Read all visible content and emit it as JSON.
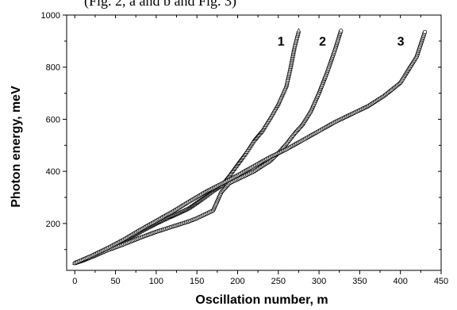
{
  "page": {
    "top_caption": "(Fig. 2, a and b and Fig. 3)"
  },
  "chart_data": {
    "type": "scatter",
    "title": "",
    "xlabel": "Oscillation number, m",
    "ylabel": "Photon energy, meV",
    "xlim": [
      -10,
      450
    ],
    "ylim": [
      20,
      1000
    ],
    "xticks": [
      0,
      50,
      100,
      150,
      200,
      250,
      300,
      350,
      400,
      450
    ],
    "yticks": [
      200,
      400,
      600,
      800,
      1000
    ],
    "grid": false,
    "series": [
      {
        "name": "1",
        "marker": "triangle",
        "label_position": [
          249,
          883
        ],
        "points": [
          [
            0,
            48
          ],
          [
            10,
            58
          ],
          [
            20,
            72
          ],
          [
            30,
            86
          ],
          [
            40,
            102
          ],
          [
            50,
            118
          ],
          [
            60,
            133
          ],
          [
            70,
            150
          ],
          [
            80,
            167
          ],
          [
            90,
            184
          ],
          [
            100,
            200
          ],
          [
            110,
            215
          ],
          [
            120,
            229
          ],
          [
            130,
            243
          ],
          [
            140,
            258
          ],
          [
            150,
            280
          ],
          [
            160,
            302
          ],
          [
            170,
            325
          ],
          [
            180,
            345
          ],
          [
            190,
            385
          ],
          [
            200,
            428
          ],
          [
            210,
            470
          ],
          [
            220,
            518
          ],
          [
            230,
            555
          ],
          [
            240,
            605
          ],
          [
            250,
            660
          ],
          [
            260,
            730
          ],
          [
            265,
            800
          ],
          [
            270,
            880
          ],
          [
            275,
            940
          ]
        ]
      },
      {
        "name": "2",
        "marker": "circle",
        "label_position": [
          300,
          883
        ],
        "points": [
          [
            0,
            48
          ],
          [
            20,
            70
          ],
          [
            40,
            97
          ],
          [
            60,
            120
          ],
          [
            80,
            145
          ],
          [
            100,
            168
          ],
          [
            120,
            188
          ],
          [
            140,
            208
          ],
          [
            150,
            220
          ],
          [
            160,
            235
          ],
          [
            170,
            250
          ],
          [
            180,
            320
          ],
          [
            190,
            355
          ],
          [
            200,
            370
          ],
          [
            210,
            385
          ],
          [
            220,
            400
          ],
          [
            230,
            420
          ],
          [
            240,
            440
          ],
          [
            250,
            470
          ],
          [
            260,
            505
          ],
          [
            270,
            545
          ],
          [
            280,
            580
          ],
          [
            290,
            630
          ],
          [
            300,
            700
          ],
          [
            310,
            780
          ],
          [
            320,
            870
          ],
          [
            327,
            940
          ]
        ]
      },
      {
        "name": "3",
        "marker": "circle",
        "label_position": [
          396,
          883
        ],
        "points": [
          [
            0,
            48
          ],
          [
            20,
            75
          ],
          [
            40,
            105
          ],
          [
            60,
            138
          ],
          [
            80,
            175
          ],
          [
            100,
            210
          ],
          [
            120,
            245
          ],
          [
            140,
            283
          ],
          [
            160,
            320
          ],
          [
            180,
            352
          ],
          [
            200,
            385
          ],
          [
            220,
            420
          ],
          [
            240,
            455
          ],
          [
            260,
            485
          ],
          [
            280,
            520
          ],
          [
            300,
            555
          ],
          [
            320,
            590
          ],
          [
            340,
            620
          ],
          [
            360,
            650
          ],
          [
            380,
            690
          ],
          [
            400,
            740
          ],
          [
            420,
            840
          ],
          [
            430,
            935
          ]
        ]
      }
    ]
  }
}
